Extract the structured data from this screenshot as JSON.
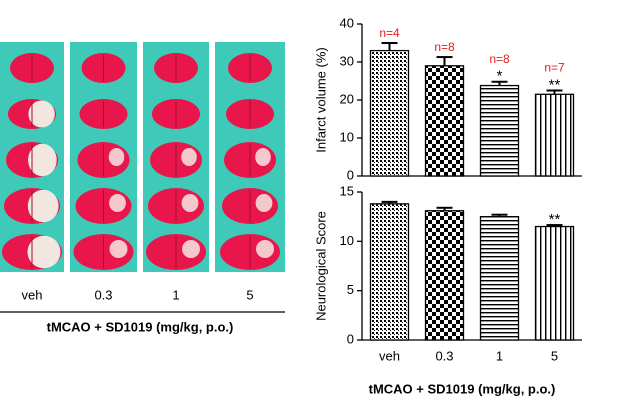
{
  "panel": {
    "labels": [
      "veh",
      "0.3",
      "1",
      "5"
    ],
    "caption": "tMCAO + SD1019 (mg/kg, p.o.)"
  },
  "chart_data": [
    {
      "type": "bar",
      "y_label": "Infarct volume (%)",
      "categories": [
        null,
        null,
        null,
        null
      ],
      "values": [
        33,
        29,
        23.8,
        21.5
      ],
      "errors": [
        2,
        2.3,
        1,
        1
      ],
      "n_labels": [
        "n=4",
        "n=8",
        "n=8",
        "n=7"
      ],
      "n_color": "#e02020",
      "significance": [
        null,
        null,
        "*",
        "**"
      ],
      "patterns": [
        "dots",
        "checker",
        "hlines",
        "vlines"
      ],
      "ylim": [
        0,
        40
      ],
      "yticks": [
        0,
        10,
        20,
        30,
        40
      ]
    },
    {
      "type": "bar",
      "y_label": "Neurological Score",
      "categories": [
        "veh",
        "0.3",
        "1",
        "5"
      ],
      "values": [
        13.8,
        13.1,
        12.5,
        11.5
      ],
      "errors": [
        0.2,
        0.3,
        0.2,
        0.15
      ],
      "significance": [
        null,
        null,
        null,
        "**"
      ],
      "patterns": [
        "dots",
        "checker",
        "hlines",
        "vlines"
      ],
      "x_label": "tMCAO + SD1019 (mg/kg, p.o.)",
      "ylim": [
        0,
        15
      ],
      "yticks": [
        0,
        5,
        10,
        15
      ]
    }
  ]
}
